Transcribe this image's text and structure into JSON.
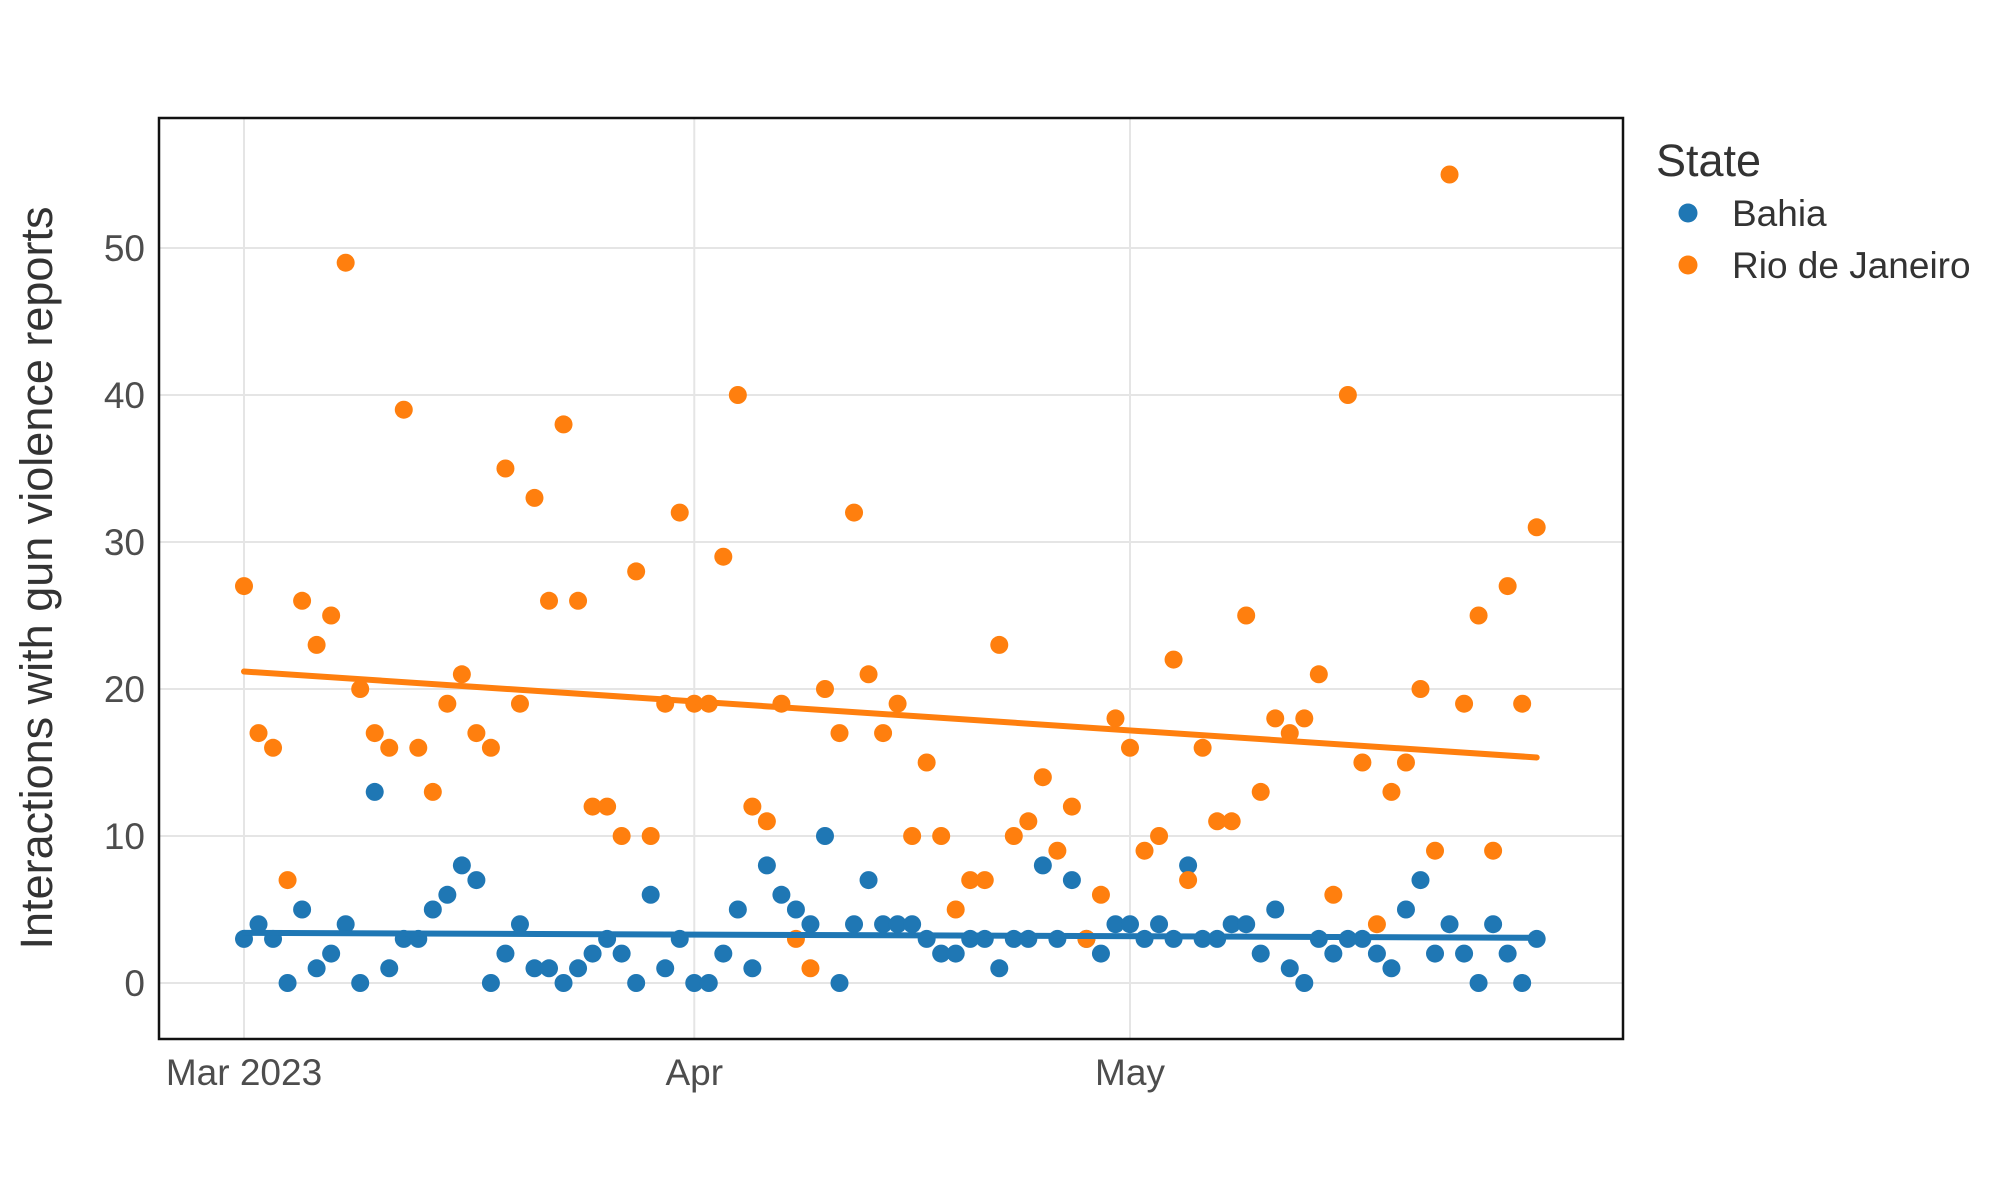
{
  "figure": {
    "background_color": "#FFFFFF",
    "panel_background": "#FFFFFF",
    "panel_border_color": "#111111",
    "gridline_color": "#E5E5E5",
    "tick_label_color": "#4D4D4D",
    "title_color": "#333333"
  },
  "chart_data": {
    "type": "scatter",
    "title": "",
    "xlabel": "",
    "ylabel": "Interactions with gun violence reports",
    "x_axis": {
      "kind": "date",
      "start_date": "2023-03-01",
      "end_date": "2023-05-29",
      "n_days": 90,
      "ticks": [
        {
          "label": "Mar 2023",
          "day_index": 0
        },
        {
          "label": "Apr",
          "day_index": 31
        },
        {
          "label": "May",
          "day_index": 61
        }
      ]
    },
    "y_axis": {
      "ticks": [
        0,
        10,
        20,
        30,
        40,
        50
      ],
      "data_min": 0,
      "data_max": 55
    },
    "grid": "major-only",
    "legend": {
      "title": "State",
      "position": "right",
      "items": [
        {
          "label": "Bahia",
          "color": "#1F77B4"
        },
        {
          "label": "Rio de Janeiro",
          "color": "#FF7F0E"
        }
      ]
    },
    "trend": {
      "type": "linear-regression",
      "se_band": false
    },
    "series": [
      {
        "name": "Bahia",
        "color": "#1F77B4",
        "values": [
          3,
          4,
          3,
          0,
          5,
          1,
          2,
          4,
          0,
          13,
          1,
          3,
          3,
          5,
          6,
          8,
          7,
          0,
          2,
          4,
          1,
          1,
          0,
          1,
          2,
          3,
          2,
          0,
          6,
          1,
          3,
          0,
          0,
          2,
          5,
          1,
          8,
          6,
          5,
          4,
          10,
          0,
          4,
          7,
          4,
          4,
          4,
          3,
          2,
          2,
          3,
          3,
          1,
          3,
          3,
          8,
          3,
          7,
          3,
          2,
          4,
          4,
          3,
          4,
          3,
          8,
          3,
          3,
          4,
          4,
          2,
          5,
          1,
          0,
          3,
          2,
          3,
          3,
          2,
          1,
          5,
          7,
          2,
          4,
          2,
          0,
          4,
          2,
          0,
          3
        ]
      },
      {
        "name": "Rio de Janeiro",
        "color": "#FF7F0E",
        "values": [
          27,
          17,
          16,
          7,
          26,
          23,
          25,
          49,
          20,
          17,
          16,
          39,
          16,
          13,
          19,
          21,
          17,
          16,
          35,
          19,
          33,
          26,
          38,
          26,
          12,
          12,
          10,
          28,
          10,
          19,
          32,
          19,
          19,
          29,
          40,
          12,
          11,
          19,
          3,
          1,
          20,
          17,
          32,
          21,
          17,
          19,
          10,
          15,
          10,
          5,
          7,
          7,
          23,
          10,
          11,
          14,
          9,
          12,
          3,
          6,
          18,
          16,
          9,
          10,
          22,
          7,
          16,
          11,
          11,
          25,
          13,
          18,
          17,
          18,
          21,
          6,
          40,
          15,
          4,
          13,
          15,
          20,
          9,
          55,
          19,
          25,
          9,
          27,
          19,
          31
        ]
      }
    ]
  }
}
